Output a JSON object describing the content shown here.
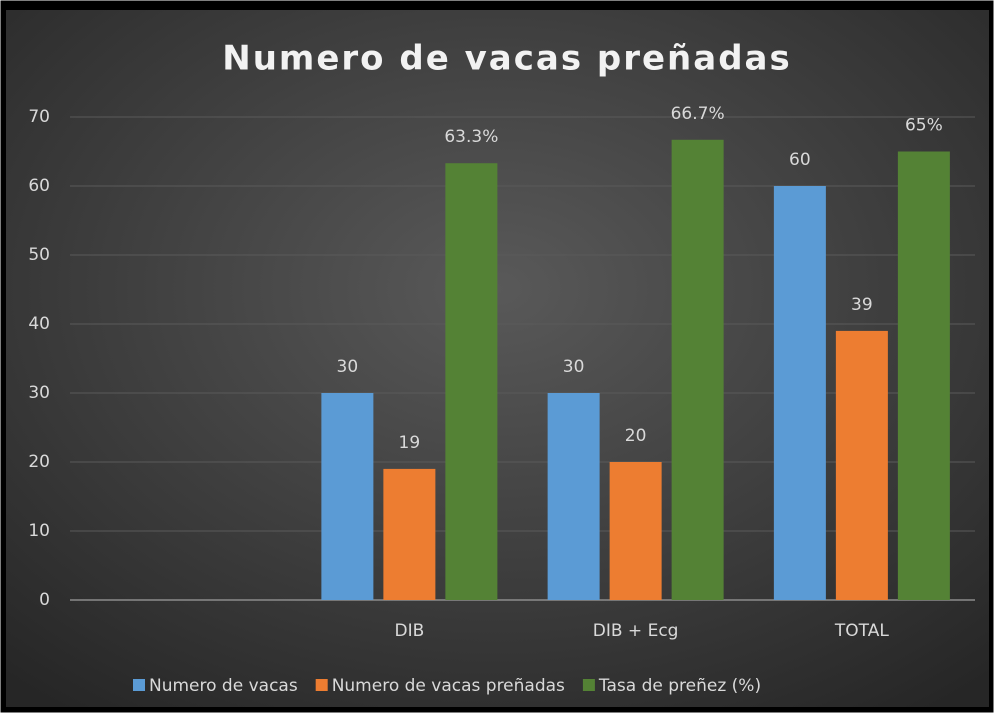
{
  "chart_data": {
    "type": "bar",
    "title": "Numero de vacas preñadas",
    "categories": [
      null,
      "DIB",
      "DIB + Ecg",
      "TOTAL"
    ],
    "series": [
      {
        "name": "Numero de vacas",
        "color": "#5b9bd5",
        "values": [
          null,
          30,
          30,
          60
        ]
      },
      {
        "name": "Numero de vacas preñadas",
        "color": "#ed7d31",
        "values": [
          null,
          19,
          20,
          39
        ]
      },
      {
        "name": "Tasa de preñez (%)",
        "color": "#548235",
        "values": [
          null,
          63.3,
          66.7,
          65
        ],
        "value_labels": [
          null,
          "63.3%",
          "66.7%",
          "65%"
        ]
      }
    ],
    "ylim": [
      0,
      70
    ],
    "yticks": [
      0,
      10,
      20,
      30,
      40,
      50,
      60,
      70
    ],
    "grid": true,
    "legend": "bottom"
  }
}
